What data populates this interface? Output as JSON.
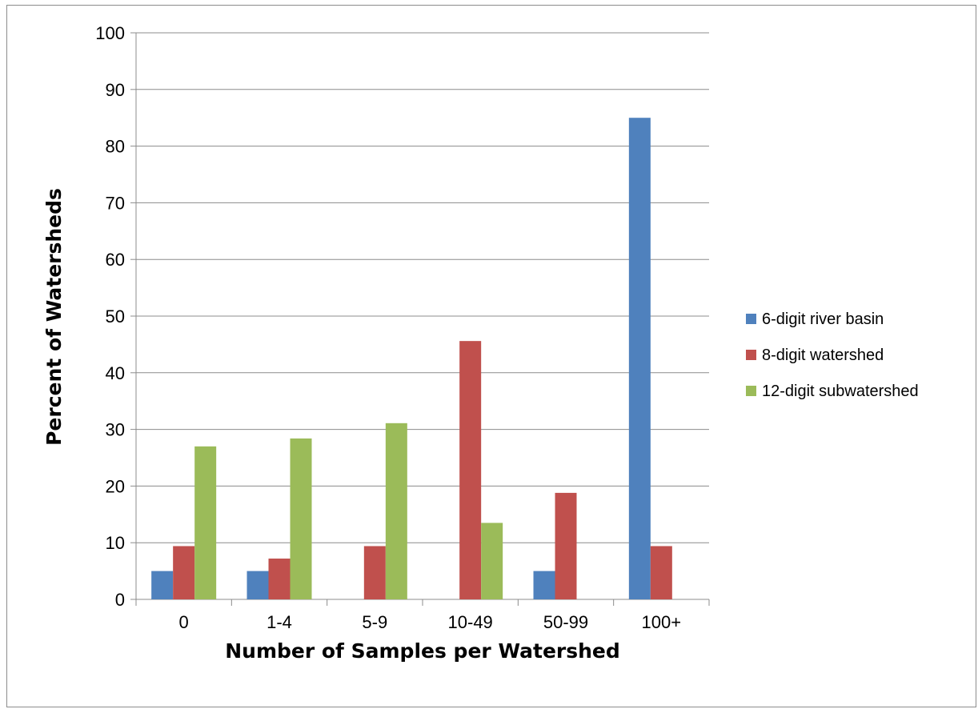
{
  "chart_data": {
    "type": "bar",
    "title": "",
    "xlabel": "Number of Samples per Watershed",
    "ylabel": "Percent of Watersheds",
    "categories": [
      "0",
      "1-4",
      "5-9",
      "10-49",
      "50-99",
      "100+"
    ],
    "ylim": [
      0,
      100
    ],
    "yticks": [
      0,
      10,
      20,
      30,
      40,
      50,
      60,
      70,
      80,
      90,
      100
    ],
    "grid": "horizontal",
    "legend_position": "right",
    "series": [
      {
        "name": "6-digit river basin",
        "color": "#4f81bd",
        "values": [
          5,
          5,
          0,
          0,
          5,
          85
        ]
      },
      {
        "name": "8-digit watershed",
        "color": "#c0504d",
        "values": [
          9.4,
          7.2,
          9.4,
          45.6,
          18.8,
          9.4
        ]
      },
      {
        "name": "12-digit subwatershed",
        "color": "#9bbb59",
        "values": [
          27,
          28.4,
          31.1,
          13.5,
          0,
          0
        ]
      }
    ]
  }
}
